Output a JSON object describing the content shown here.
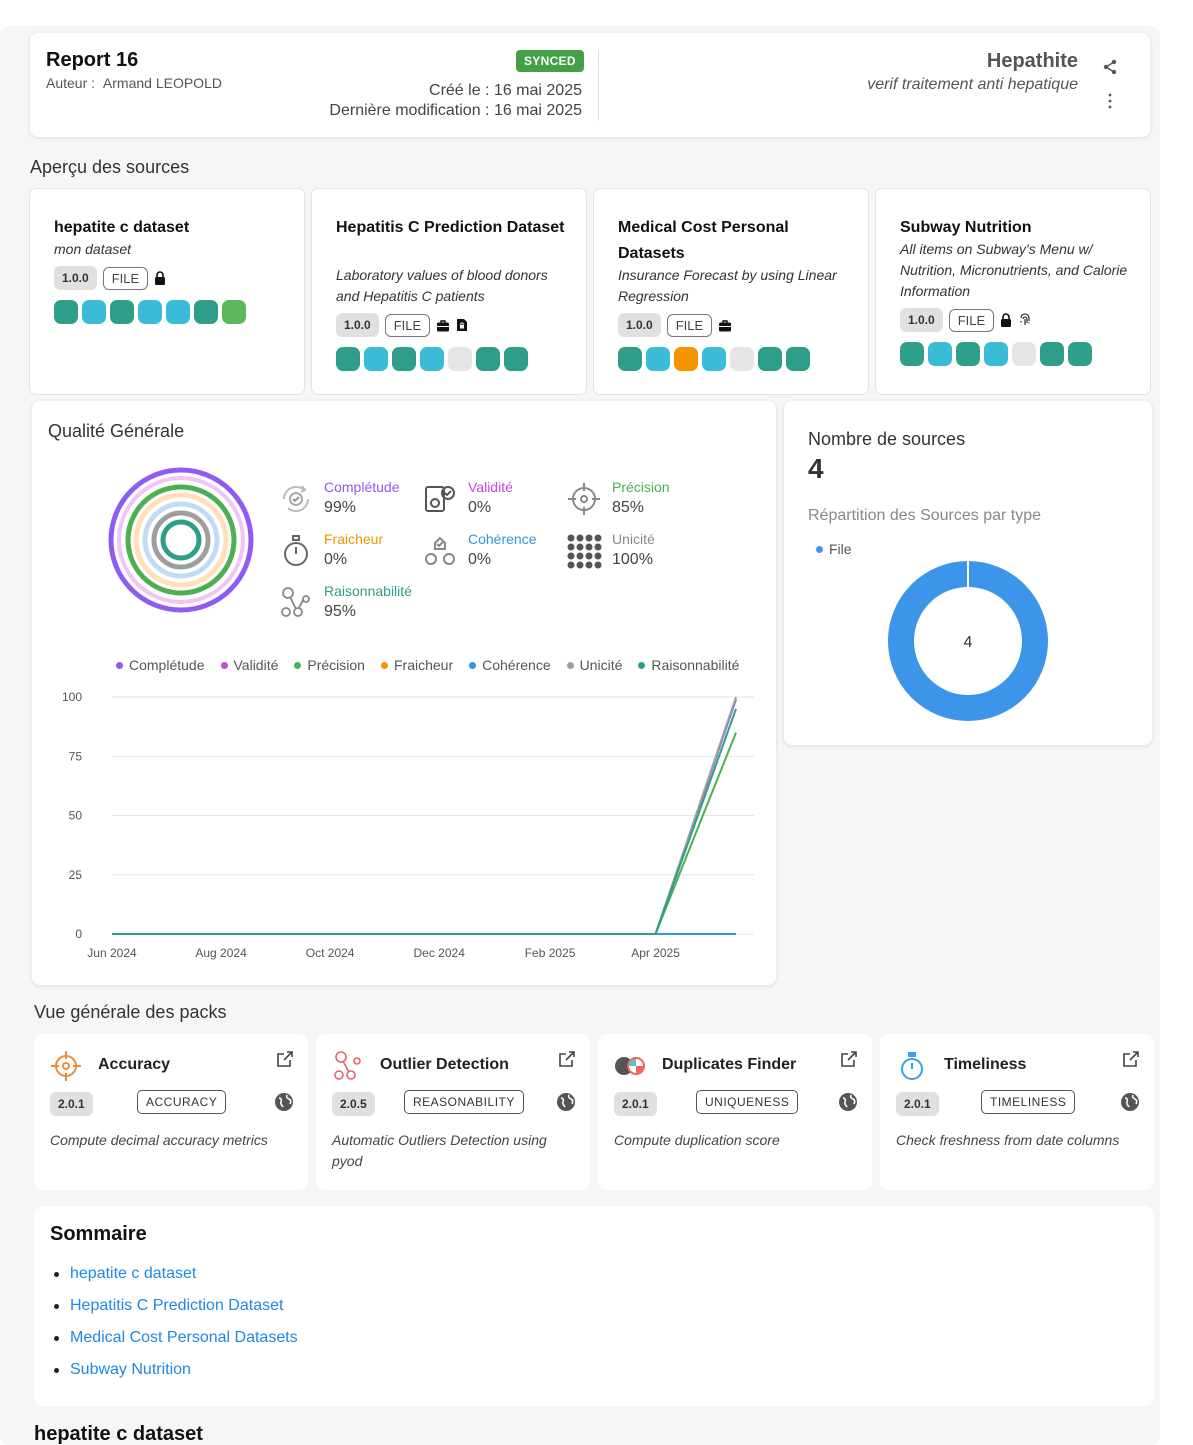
{
  "header": {
    "title": "Report 16",
    "author_label": "Auteur :",
    "author_name": "Armand LEOPOLD",
    "badge": "SYNCED",
    "created": "Créé le : 16 mai 2025",
    "modified": "Dernière modification : 16 mai 2025",
    "project_title": "Hepathite",
    "project_subtitle": "verif traitement anti hepatique"
  },
  "sources_section_title": "Aperçu des sources",
  "sources": [
    {
      "name": "hepatite c dataset",
      "desc": "mon dataset",
      "version": "1.0.0",
      "type": "FILE",
      "icons": [
        "lock-icon"
      ],
      "quality_colors": [
        "#2e9e8a",
        "#3bbcd6",
        "#2e9e8a",
        "#3bbcd6",
        "#3bbcd6",
        "#2e9e8a",
        "#5cb85c"
      ]
    },
    {
      "name": "Hepatitis C Prediction Dataset",
      "desc": "Laboratory values of blood donors and Hepatitis C patients",
      "version": "1.0.0",
      "type": "FILE",
      "icons": [
        "briefcase-icon",
        "file-lock-icon"
      ],
      "quality_colors": [
        "#2e9e8a",
        "#3bbcd6",
        "#2e9e8a",
        "#3bbcd6",
        "#e6e6e6",
        "#2e9e8a",
        "#2e9e8a"
      ]
    },
    {
      "name": "Medical Cost Personal Datasets",
      "desc": "Insurance Forecast by using Linear Regression",
      "version": "1.0.0",
      "type": "FILE",
      "icons": [
        "briefcase-icon"
      ],
      "quality_colors": [
        "#2e9e8a",
        "#3bbcd6",
        "#f59300",
        "#3bbcd6",
        "#e6e6e6",
        "#2e9e8a",
        "#2e9e8a"
      ]
    },
    {
      "name": "Subway Nutrition",
      "desc": "All items on Subway's Menu w/ Nutrition, Micronutrients, and Calorie Information",
      "version": "1.0.0",
      "type": "FILE",
      "icons": [
        "lock-icon",
        "fingerprint-icon"
      ],
      "quality_colors": [
        "#2e9e8a",
        "#3bbcd6",
        "#2e9e8a",
        "#3bbcd6",
        "#e6e6e6",
        "#2e9e8a",
        "#2e9e8a"
      ]
    }
  ],
  "quality": {
    "title": "Qualité Générale",
    "metrics": [
      {
        "key": "completude",
        "label": "Complétude",
        "value": "99%",
        "color": "#8e5cf2",
        "icon": "refresh-check-icon"
      },
      {
        "key": "validite",
        "label": "Validité",
        "value": "0%",
        "color": "#c64bd8",
        "icon": "gear-check-icon"
      },
      {
        "key": "precision",
        "label": "Précision",
        "value": "85%",
        "color": "#4caf50",
        "icon": "crosshair-icon"
      },
      {
        "key": "fraicheur",
        "label": "Fraicheur",
        "value": "0%",
        "color": "#f59300",
        "icon": "stopwatch-icon"
      },
      {
        "key": "coherence",
        "label": "Cohérence",
        "value": "0%",
        "color": "#2f95e6",
        "icon": "gears-check-icon"
      },
      {
        "key": "unicite",
        "label": "Unicité",
        "value": "100%",
        "color": "#888888",
        "icon": "dots-grid-icon"
      },
      {
        "key": "raisonnabilite",
        "label": "Raisonnabilité",
        "value": "95%",
        "color": "#2e9e8a",
        "icon": "share-nodes-icon"
      }
    ],
    "ring_colors": [
      "#8e5cf2",
      "#f2c4f7",
      "#4caf50",
      "#ffe0b8",
      "#bfdcf7",
      "#9e9e9e",
      "#2e9e8a"
    ]
  },
  "chart_data": {
    "type": "line",
    "x_ticks": [
      "Jun 2024",
      "Aug 2024",
      "Oct 2024",
      "Dec 2024",
      "Feb 2025",
      "Apr 2025"
    ],
    "y_ticks": [
      0,
      25,
      50,
      75,
      100
    ],
    "ylim": [
      0,
      100
    ],
    "xlim": [
      "2024-06-01",
      "2025-05-16"
    ],
    "grid": true,
    "legend_position": "top",
    "series": [
      {
        "name": "Complétude",
        "color": "#8e5cf2",
        "x": [
          "2024-06-01",
          "2025-04-01",
          "2025-05-16"
        ],
        "values": [
          0,
          0,
          99
        ]
      },
      {
        "name": "Validité",
        "color": "#c64bd8",
        "x": [
          "2024-06-01",
          "2025-04-01",
          "2025-05-16"
        ],
        "values": [
          0,
          0,
          0
        ]
      },
      {
        "name": "Précision",
        "color": "#4caf50",
        "x": [
          "2024-06-01",
          "2025-04-01",
          "2025-05-16"
        ],
        "values": [
          0,
          0,
          85
        ]
      },
      {
        "name": "Fraicheur",
        "color": "#f59300",
        "x": [
          "2024-06-01",
          "2025-04-01",
          "2025-05-16"
        ],
        "values": [
          0,
          0,
          0
        ]
      },
      {
        "name": "Cohérence",
        "color": "#2f95e6",
        "x": [
          "2024-06-01",
          "2025-04-01",
          "2025-05-16"
        ],
        "values": [
          0,
          0,
          0
        ]
      },
      {
        "name": "Unicité",
        "color": "#9e9e9e",
        "x": [
          "2024-06-01",
          "2025-04-01",
          "2025-05-16"
        ],
        "values": [
          0,
          0,
          100
        ]
      },
      {
        "name": "Raisonnabilité",
        "color": "#2e9e8a",
        "x": [
          "2024-06-01",
          "2025-04-01",
          "2025-05-16"
        ],
        "values": [
          0,
          0,
          95
        ]
      }
    ]
  },
  "count": {
    "title": "Nombre de sources",
    "value": "4",
    "subtitle": "Répartition des Sources par type",
    "legend": "File",
    "donut_label": "4",
    "donut_color": "#3d95ea",
    "donut_values": [
      4
    ]
  },
  "packs_section_title": "Vue générale des packs",
  "packs": [
    {
      "name": "Accuracy",
      "version": "2.0.1",
      "tag": "ACCURACY",
      "desc": "Compute decimal accuracy metrics",
      "icon": "crosshair-icon"
    },
    {
      "name": "Outlier Detection",
      "version": "2.0.5",
      "tag": "REASONABILITY",
      "desc": "Automatic Outliers Detection using pyod",
      "icon": "outlier-icon"
    },
    {
      "name": "Duplicates Finder",
      "version": "2.0.1",
      "tag": "UNIQUENESS",
      "desc": "Compute duplication score",
      "icon": "duplicates-icon"
    },
    {
      "name": "Timeliness",
      "version": "2.0.1",
      "tag": "TIMELINESS",
      "desc": "Check freshness from date columns",
      "icon": "stopwatch-icon"
    }
  ],
  "summary": {
    "title": "Sommaire",
    "items": [
      "hepatite c dataset",
      "Hepatitis C Prediction Dataset",
      "Medical Cost Personal Datasets",
      "Subway Nutrition"
    ]
  },
  "bottom_section_title": "hepatite c dataset"
}
